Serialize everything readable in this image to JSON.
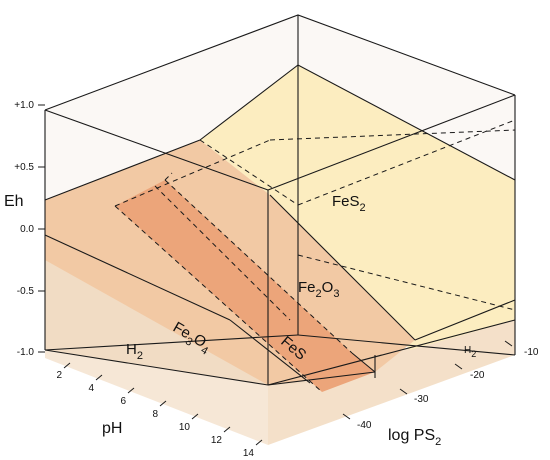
{
  "axes": {
    "eh": {
      "title": "Eh",
      "ticks": [
        "+1.0",
        "+0.5",
        "0.0",
        "-0.5",
        "-1.0"
      ]
    },
    "ph": {
      "title": "pH",
      "ticks": [
        "2",
        "4",
        "6",
        "8",
        "10",
        "12",
        "14"
      ]
    },
    "logps2": {
      "title_main": "log PS",
      "title_sub": "2",
      "ticks": [
        "-10",
        "-20",
        "-30",
        "-40"
      ]
    }
  },
  "fields": {
    "fes2": {
      "main": "FeS",
      "sub": "2"
    },
    "fe2o3": {
      "p1": "Fe",
      "s1": "2",
      "p2": "O",
      "s2": "3"
    },
    "fes": {
      "main": "FeS"
    },
    "fe3o4": {
      "p1": "Fe",
      "s1": "3",
      "p2": "O",
      "s2": "4"
    },
    "h2_front": {
      "main": "H",
      "sub": "2"
    },
    "h2_right": {
      "main": "H",
      "sub": "2"
    }
  },
  "colors": {
    "fes2": "#fcedc0",
    "fe2o3": "#f2c9a4",
    "fes": "#eca57a",
    "fe3o4": "#f1dcc4",
    "outline": "#1a1a1a"
  }
}
